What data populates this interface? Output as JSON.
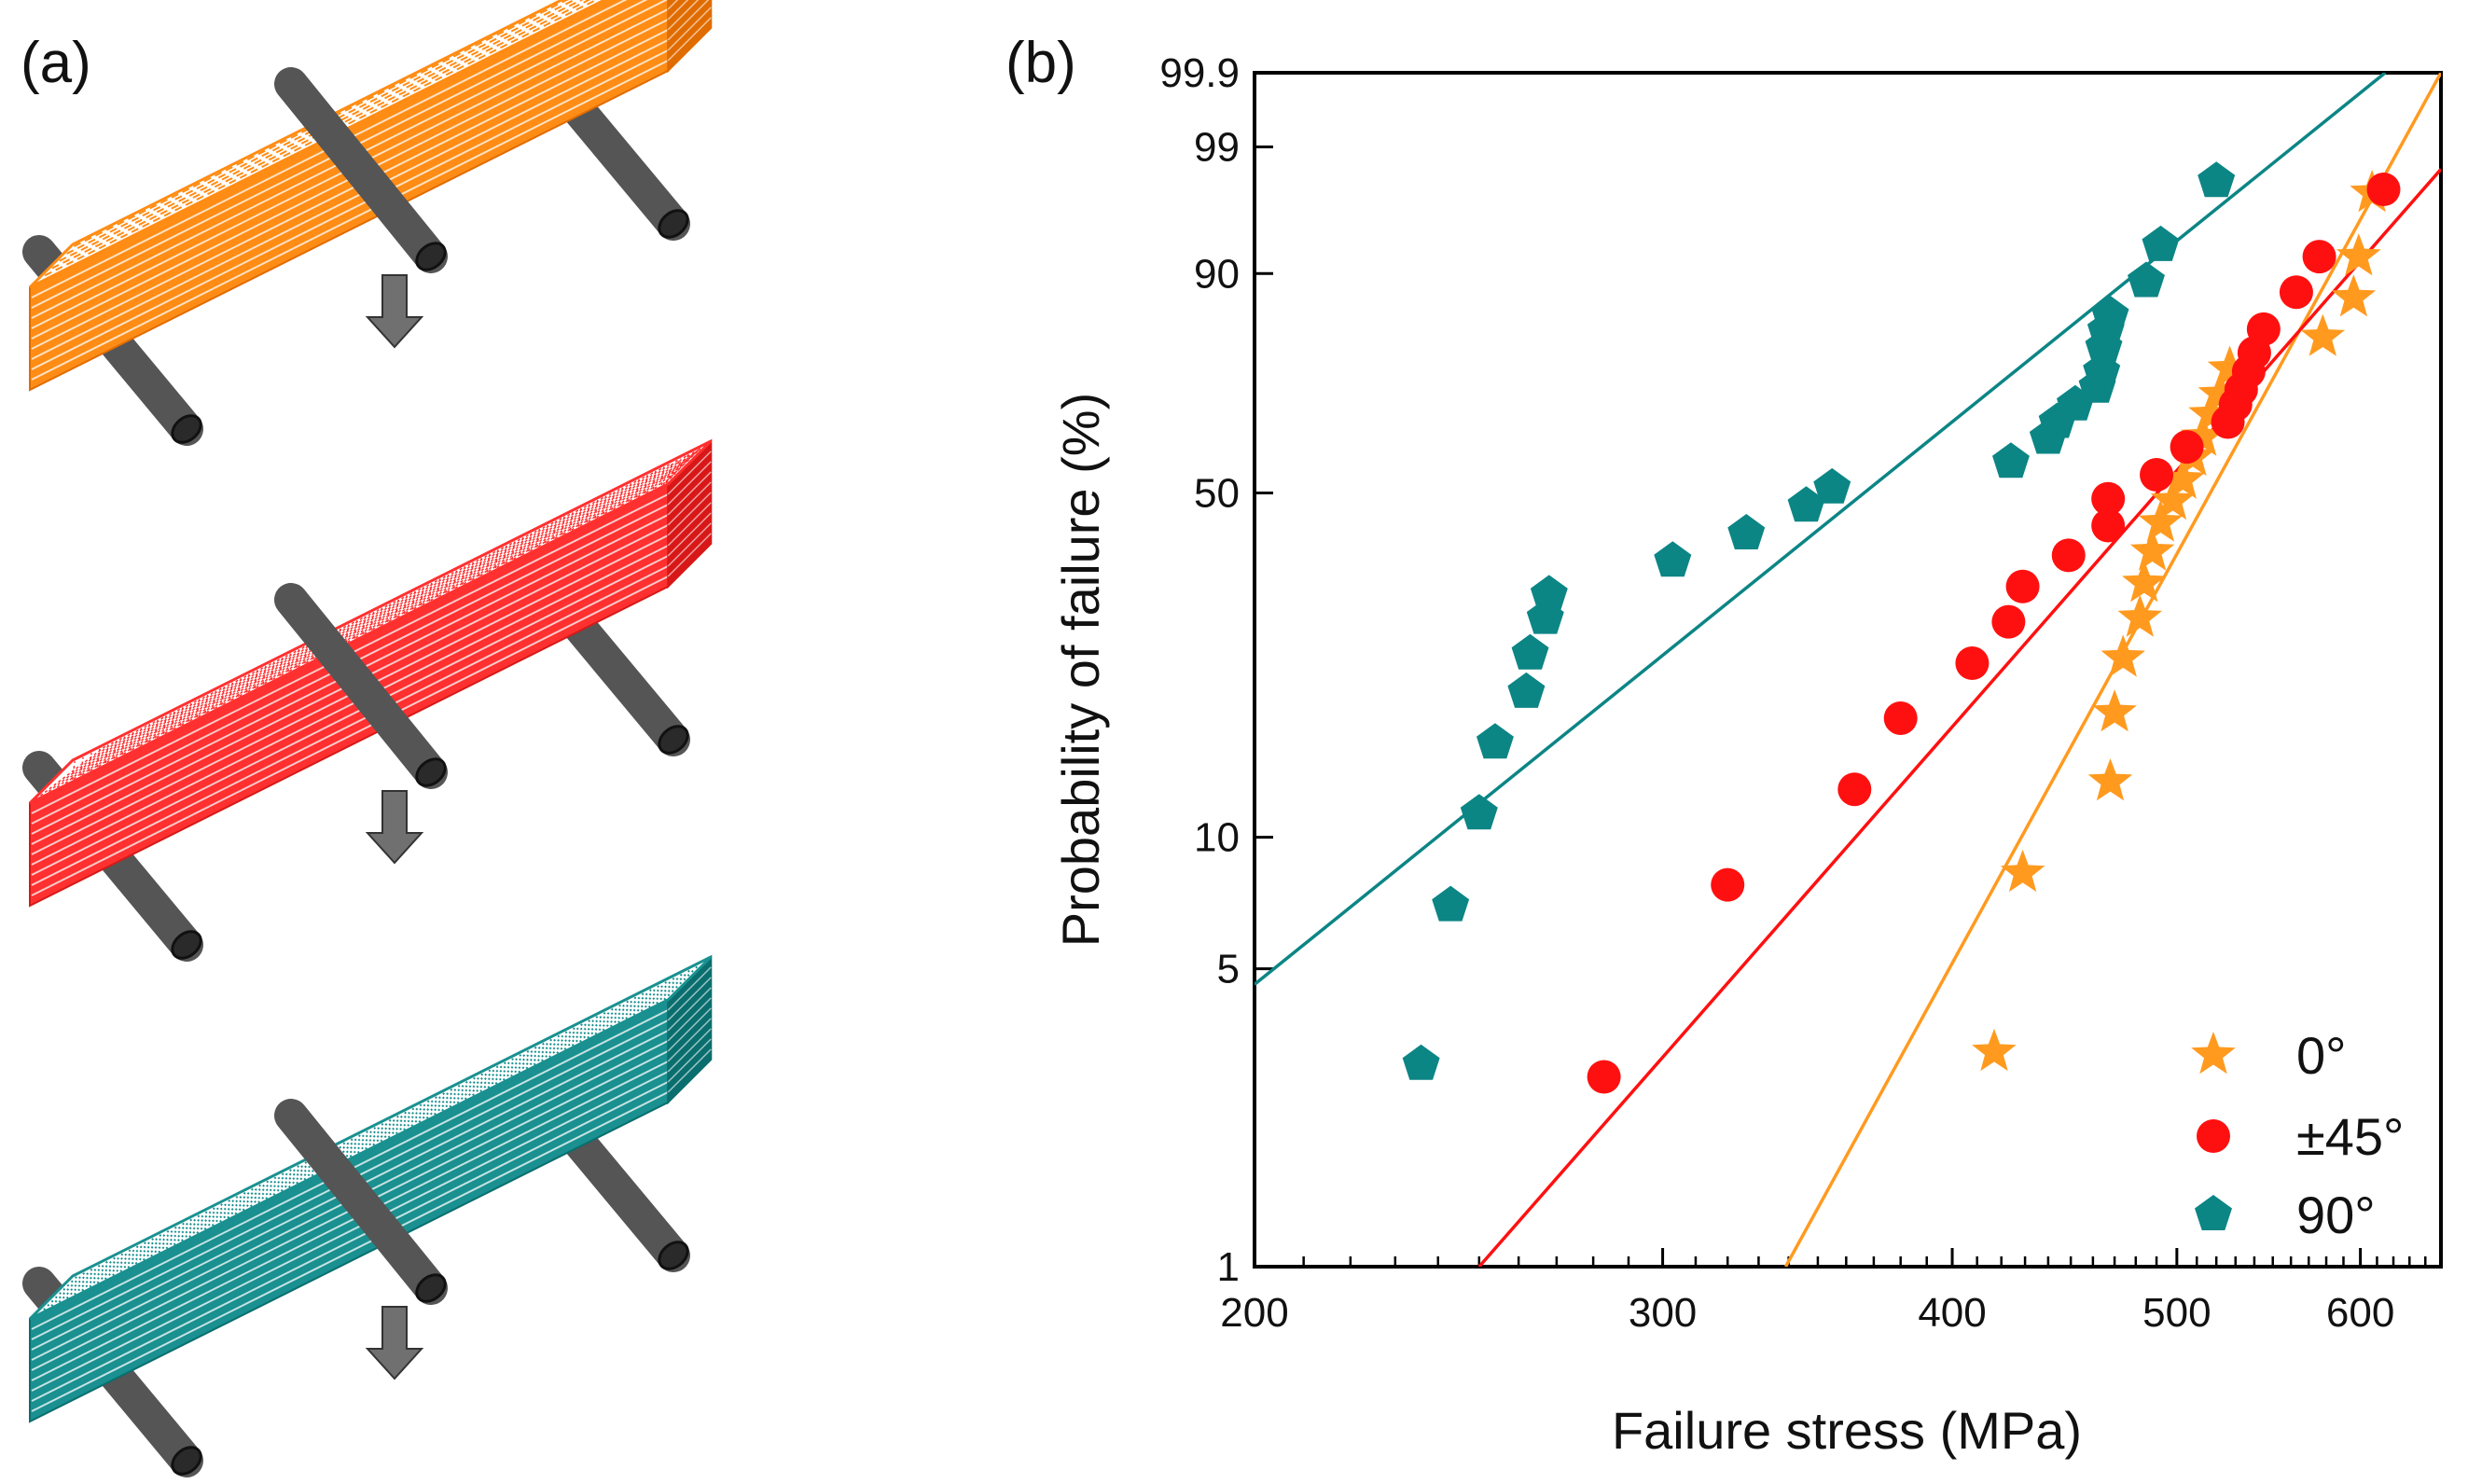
{
  "panel_a": {
    "label": "(a)",
    "specimens": [
      {
        "name": "0°",
        "color": "#ff8c14",
        "dark": "#e06c00",
        "pattern": "lines"
      },
      {
        "name": "±45°",
        "color": "#ff3030",
        "dark": "#d81818",
        "pattern": "cross"
      },
      {
        "name": "90°",
        "color": "#1a9090",
        "dark": "#0a6e6e",
        "pattern": "dots"
      }
    ],
    "roller_color": "#555555",
    "arrow_color": "#707070"
  },
  "chart_data": {
    "type": "scatter",
    "panel_label": "(b)",
    "xlabel": "Failure stress (MPa)",
    "ylabel": "Probability of failure (%)",
    "x_scale": "log",
    "y_scale": "weibull",
    "xlim": [
      200,
      650
    ],
    "ylim": [
      1,
      99.9
    ],
    "x_ticks": [
      200,
      300,
      400,
      500,
      600
    ],
    "x_minor_ticks": [
      210,
      220,
      230,
      240,
      250,
      260,
      270,
      280,
      290,
      310,
      320,
      330,
      340,
      350,
      360,
      370,
      380,
      390,
      410,
      420,
      430,
      440,
      450,
      460,
      470,
      480,
      490,
      510,
      520,
      530,
      540,
      550,
      560,
      570,
      580,
      590,
      610,
      620,
      630,
      640
    ],
    "y_ticks": [
      1,
      5,
      10,
      50,
      90,
      99,
      99.9
    ],
    "grid": false,
    "legend_position": "bottom-right",
    "series": [
      {
        "name": "0°",
        "marker": "star",
        "color": "#ff9a1f",
        "fit": {
          "x_start": 339,
          "x_end": 650,
          "p_start": 1,
          "p_end": 99.9
        },
        "points": [
          [
            417,
            3.2
          ],
          [
            429,
            8.3
          ],
          [
            468,
            13.3
          ],
          [
            470,
            18.8
          ],
          [
            474,
            24.5
          ],
          [
            482,
            29.5
          ],
          [
            484,
            34.5
          ],
          [
            488,
            39.5
          ],
          [
            492,
            44.5
          ],
          [
            498,
            48.5
          ],
          [
            503,
            52.5
          ],
          [
            508,
            57.0
          ],
          [
            513,
            61.0
          ],
          [
            517,
            65.5
          ],
          [
            522,
            69.5
          ],
          [
            527,
            74.5
          ],
          [
            578,
            80.3
          ],
          [
            596,
            86.7
          ],
          [
            599,
            92.0
          ],
          [
            607,
            97.2
          ]
        ]
      },
      {
        "name": "±45°",
        "marker": "circle",
        "color": "#ff1010",
        "fit": {
          "x_start": 250,
          "x_end": 650,
          "p_start": 1,
          "p_end": 98.3
        },
        "points": [
          [
            283,
            2.8
          ],
          [
            320,
            7.8
          ],
          [
            363,
            12.8
          ],
          [
            380,
            18.3
          ],
          [
            408,
            23.9
          ],
          [
            423,
            29.0
          ],
          [
            429,
            34.0
          ],
          [
            449,
            38.9
          ],
          [
            467,
            44.0
          ],
          [
            467,
            48.9
          ],
          [
            490,
            53.5
          ],
          [
            505,
            59.0
          ],
          [
            526,
            64.0
          ],
          [
            530,
            67.5
          ],
          [
            533,
            70.5
          ],
          [
            537,
            74.0
          ],
          [
            540,
            77.5
          ],
          [
            545,
            81.7
          ],
          [
            563,
            87.5
          ],
          [
            576,
            92.0
          ],
          [
            614,
            97.4
          ]
        ]
      },
      {
        "name": "90°",
        "marker": "pentagon",
        "color": "#0c8585",
        "fit": {
          "x_start": 200,
          "x_end": 615,
          "p_start": 4.6,
          "p_end": 99.9
        },
        "points": [
          [
            236,
            3.0
          ],
          [
            243,
            7.0
          ],
          [
            250,
            11.3
          ],
          [
            254,
            16.2
          ],
          [
            262,
            20.8
          ],
          [
            263,
            25.0
          ],
          [
            267,
            29.5
          ],
          [
            268,
            32.8
          ],
          [
            303,
            38.0
          ],
          [
            326,
            42.6
          ],
          [
            346,
            47.6
          ],
          [
            355,
            51.0
          ],
          [
            424,
            56.0
          ],
          [
            440,
            60.8
          ],
          [
            444,
            64.0
          ],
          [
            452,
            67.5
          ],
          [
            462,
            71.0
          ],
          [
            464,
            74.0
          ],
          [
            465,
            78.5
          ],
          [
            466,
            81.5
          ],
          [
            468,
            84.0
          ],
          [
            485,
            89.0
          ],
          [
            492,
            93.2
          ],
          [
            520,
            97.8
          ]
        ]
      }
    ]
  }
}
